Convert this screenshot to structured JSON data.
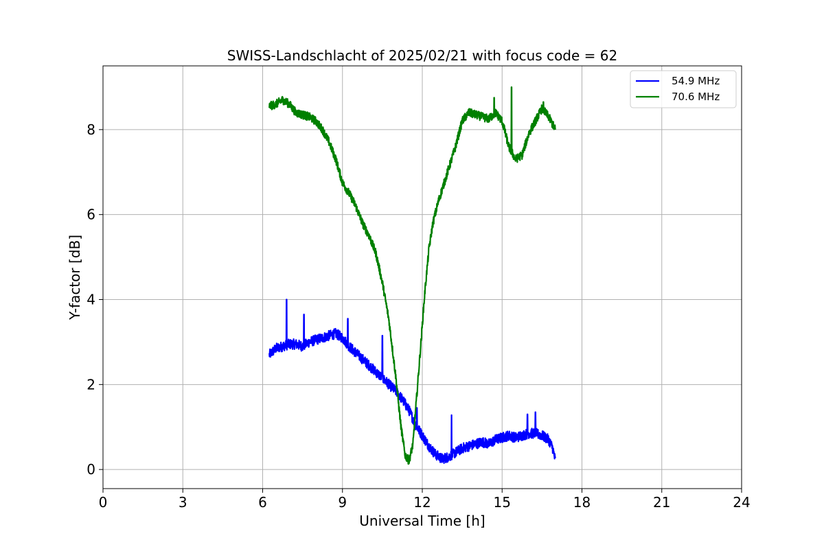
{
  "chart_data": {
    "type": "line",
    "title": "SWISS-Landschlacht of 2025/02/21 with focus code = 62",
    "xlabel": "Universal Time [h]",
    "ylabel": "Y-factor [dB]",
    "xlim": [
      0,
      24
    ],
    "ylim": [
      -0.45,
      9.5
    ],
    "xticks": [
      0,
      3,
      6,
      9,
      12,
      15,
      18,
      21,
      24
    ],
    "yticks": [
      0,
      2,
      4,
      6,
      8
    ],
    "grid": true,
    "legend_position": "top-right",
    "series": [
      {
        "name": "54.9 MHz",
        "color": "#0000ff",
        "x": [
          6.25,
          6.5,
          6.75,
          7.0,
          7.25,
          7.5,
          7.75,
          8.0,
          8.25,
          8.5,
          8.75,
          9.0,
          9.25,
          9.5,
          9.75,
          10.0,
          10.25,
          10.5,
          10.75,
          11.0,
          11.25,
          11.5,
          11.75,
          12.0,
          12.25,
          12.5,
          12.75,
          13.0,
          13.25,
          13.5,
          13.75,
          14.0,
          14.25,
          14.5,
          14.75,
          15.0,
          15.25,
          15.5,
          15.75,
          16.0,
          16.25,
          16.5,
          16.75,
          16.9,
          17.0
        ],
        "y": [
          2.7,
          2.85,
          2.9,
          2.95,
          2.95,
          2.9,
          3.0,
          3.05,
          3.1,
          3.15,
          3.2,
          3.1,
          2.9,
          2.75,
          2.6,
          2.45,
          2.3,
          2.15,
          2.0,
          1.85,
          1.65,
          1.4,
          1.05,
          0.8,
          0.55,
          0.35,
          0.25,
          0.3,
          0.4,
          0.5,
          0.55,
          0.6,
          0.65,
          0.6,
          0.7,
          0.75,
          0.8,
          0.75,
          0.8,
          0.85,
          0.85,
          0.8,
          0.7,
          0.5,
          0.2
        ],
        "spikes": [
          [
            6.9,
            4.0
          ],
          [
            7.55,
            3.65
          ],
          [
            9.2,
            3.55
          ],
          [
            10.5,
            3.15
          ],
          [
            13.1,
            1.28
          ],
          [
            15.95,
            1.3
          ],
          [
            16.25,
            1.35
          ],
          [
            11.8,
            1.45
          ]
        ]
      },
      {
        "name": "70.6 MHz",
        "color": "#008000",
        "x": [
          6.25,
          6.5,
          6.75,
          7.0,
          7.25,
          7.5,
          7.75,
          8.0,
          8.25,
          8.5,
          8.75,
          9.0,
          9.25,
          9.5,
          9.75,
          10.0,
          10.25,
          10.5,
          10.75,
          11.0,
          11.2,
          11.35,
          11.5,
          11.65,
          11.8,
          11.95,
          12.1,
          12.25,
          12.4,
          12.6,
          12.8,
          13.0,
          13.25,
          13.5,
          13.75,
          14.0,
          14.25,
          14.5,
          14.75,
          15.0,
          15.25,
          15.5,
          15.75,
          16.0,
          16.25,
          16.5,
          16.75,
          17.0
        ],
        "y": [
          8.55,
          8.6,
          8.7,
          8.6,
          8.4,
          8.35,
          8.3,
          8.2,
          8.0,
          7.7,
          7.3,
          6.75,
          6.5,
          6.2,
          5.8,
          5.5,
          5.1,
          4.4,
          3.5,
          2.2,
          1.0,
          0.35,
          0.2,
          0.6,
          1.8,
          3.0,
          4.2,
          5.2,
          5.8,
          6.3,
          6.7,
          7.1,
          7.6,
          8.2,
          8.4,
          8.35,
          8.3,
          8.25,
          8.4,
          8.2,
          7.6,
          7.3,
          7.4,
          7.9,
          8.2,
          8.5,
          8.3,
          8.0
        ],
        "spikes": [
          [
            15.35,
            9.0
          ],
          [
            14.7,
            8.75
          ],
          [
            16.55,
            8.65
          ]
        ]
      }
    ]
  }
}
